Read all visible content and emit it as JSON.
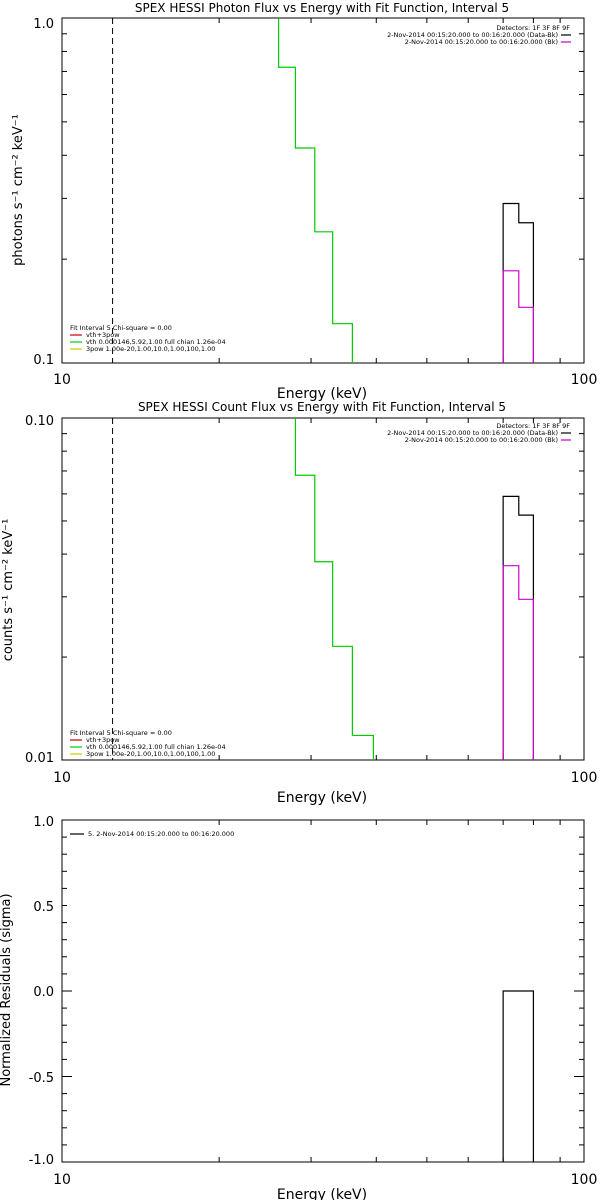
{
  "chart_data": [
    {
      "type": "line",
      "title": "SPEX HESSI Photon Flux vs Energy with Fit Function, Interval 5",
      "xlabel": "Energy (keV)",
      "ylabel": "photons s⁻¹ cm⁻² keV⁻¹",
      "xscale": "log",
      "yscale": "log",
      "xlim": [
        10,
        100
      ],
      "ylim": [
        0.1,
        1.0
      ],
      "xtick_labels": [
        "10",
        "100"
      ],
      "ytick_labels": [
        "1.0",
        "0.1"
      ],
      "dashed_vline_x": 12.5,
      "legend_top_right": {
        "header": "Detectors: 1F 3F 8F 9F",
        "entries": [
          {
            "label": "2-Nov-2014 00:15:20.000 to 00:16:20.000 (Data-Bk)",
            "color": "#000000"
          },
          {
            "label": "2-Nov-2014 00:15:20.000 to 00:16:20.000 (Bk)",
            "color": "#cc00cc"
          }
        ]
      },
      "legend_bottom_left": {
        "header": "Fit Interval  5    Chi-square = 0.00",
        "entries": [
          {
            "label": "vth+3pow",
            "color": "#cc0000"
          },
          {
            "label": "vth 0.000146,5.92,1.00   full chian 1.26e-04",
            "color": "#00cc00"
          },
          {
            "label": "3pow 1.00e-20,1.00,10.0,1.00,100,1.00",
            "color": "#cccc00"
          }
        ]
      },
      "series": [
        {
          "name": "vth 0.000146,5.92,1.00   full chian 1.26e-04",
          "color": "#00cc00",
          "bins": [
            [
              26.0,
              28.0,
              0.72
            ],
            [
              28.0,
              30.5,
              0.42
            ],
            [
              30.5,
              33.0,
              0.24
            ],
            [
              33.0,
              36.0,
              0.13
            ],
            [
              36.0,
              39.0,
              0.09
            ]
          ]
        },
        {
          "name": "2-Nov-2014 00:15:20.000 to 00:16:20.000 (Data-Bk)",
          "color": "#000000",
          "bins": [
            [
              70.0,
              75.0,
              0.29
            ],
            [
              75.0,
              80.0,
              0.255
            ]
          ]
        },
        {
          "name": "2-Nov-2014 00:15:20.000 to 00:16:20.000 (Bk)",
          "color": "#cc00cc",
          "bins": [
            [
              70.0,
              75.0,
              0.185
            ],
            [
              75.0,
              80.0,
              0.145
            ]
          ]
        }
      ]
    },
    {
      "type": "line",
      "title": "SPEX HESSI Count Flux vs Energy with Fit Function, Interval 5",
      "xlabel": "Energy (keV)",
      "ylabel": "counts s⁻¹ cm⁻² keV⁻¹",
      "xscale": "log",
      "yscale": "log",
      "xlim": [
        10,
        100
      ],
      "ylim": [
        0.01,
        0.1
      ],
      "xtick_labels": [
        "10",
        "100"
      ],
      "ytick_labels": [
        "0.10",
        "0.01"
      ],
      "dashed_vline_x": 12.5,
      "legend_top_right": {
        "header": "Detectors: 1F 3F 8F 9F",
        "entries": [
          {
            "label": "2-Nov-2014 00:15:20.000 to 00:16:20.000 (Data-Bk)",
            "color": "#000000"
          },
          {
            "label": "2-Nov-2014 00:15:20.000 to 00:16:20.000 (Bk)",
            "color": "#cc00cc"
          }
        ]
      },
      "legend_bottom_left": {
        "header": "Fit Interval  5    Chi-square = 0.00",
        "entries": [
          {
            "label": "vth+3pow",
            "color": "#cc0000"
          },
          {
            "label": "vth 0.000146,5.92,1.00   full chian 1.26e-04",
            "color": "#00cc00"
          },
          {
            "label": "3pow 1.00e-20,1.00,10.0,1.00,100,1.00",
            "color": "#cccc00"
          }
        ]
      },
      "series": [
        {
          "name": "vth 0.000146,5.92,1.00   full chian 1.26e-04",
          "color": "#00cc00",
          "bins": [
            [
              28.0,
              30.5,
              0.068
            ],
            [
              30.5,
              33.0,
              0.038
            ],
            [
              33.0,
              36.0,
              0.0215
            ],
            [
              36.0,
              39.5,
              0.0118
            ],
            [
              39.5,
              43.0,
              0.0085
            ]
          ]
        },
        {
          "name": "2-Nov-2014 00:15:20.000 to 00:16:20.000 (Data-Bk)",
          "color": "#000000",
          "bins": [
            [
              70.0,
              75.0,
              0.059
            ],
            [
              75.0,
              80.0,
              0.052
            ]
          ]
        },
        {
          "name": "2-Nov-2014 00:15:20.000 to 00:16:20.000 (Bk)",
          "color": "#cc00cc",
          "bins": [
            [
              70.0,
              75.0,
              0.037
            ],
            [
              75.0,
              80.0,
              0.0295
            ]
          ]
        }
      ]
    },
    {
      "type": "line",
      "title": "",
      "xlabel": "Energy (keV)",
      "ylabel": "Normalized Residuals (sigma)",
      "xscale": "log",
      "yscale": "linear",
      "xlim": [
        10,
        100
      ],
      "ylim": [
        -1.0,
        1.0
      ],
      "xtick_labels": [
        "10",
        "100"
      ],
      "ytick_labels": [
        "1.0",
        "0.5",
        "0.0",
        "-0.5",
        "-1.0"
      ],
      "legend_top_left": {
        "entries": [
          {
            "label": "5.  2-Nov-2014 00:15:20.000 to 00:16:20.000",
            "color": "#000000"
          }
        ]
      },
      "series": [
        {
          "name": "5.  2-Nov-2014 00:15:20.000 to 00:16:20.000",
          "color": "#000000",
          "bins": [
            [
              70.0,
              75.0,
              0.0
            ],
            [
              75.0,
              80.0,
              0.0
            ]
          ]
        }
      ]
    }
  ]
}
